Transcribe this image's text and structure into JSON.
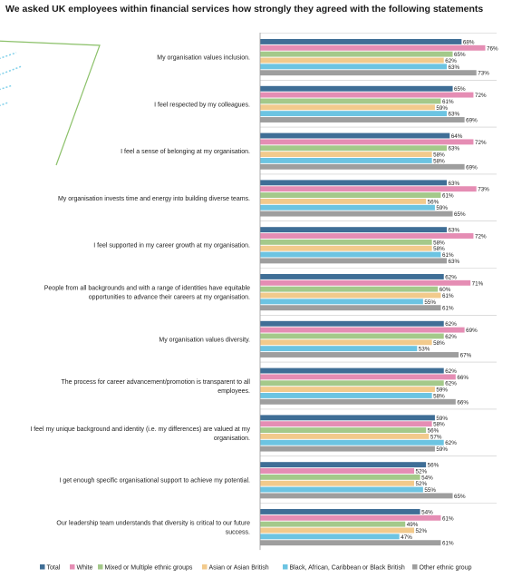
{
  "chart_data": {
    "type": "bar",
    "orientation": "horizontal",
    "title": "We asked UK employees within financial services how strongly they agreed with the following statements",
    "categories": [
      [
        "My organisation values inclusion."
      ],
      [
        "I feel respected by my colleagues."
      ],
      [
        "I feel a sense of belonging at my organisation."
      ],
      [
        "My organisation invests time and energy into building diverse teams."
      ],
      [
        "I feel supported in my career growth at my organisation."
      ],
      [
        "People from all backgrounds and with a range of identities have equitable",
        "opportunities to advance their careers at my organisation."
      ],
      [
        "My organisation values diversity."
      ],
      [
        "The process for career advancement/promotion is transparent to all",
        "employees."
      ],
      [
        "I feel my unique background and identity (i.e. my differences) are valued at my",
        "organisation."
      ],
      [
        "I get enough specific organisational support to achieve my potential."
      ],
      [
        "Our leadership team understands that diversity is critical to our future",
        "success."
      ]
    ],
    "series": [
      {
        "name": "Total",
        "color": "#3f6e96",
        "values": [
          68,
          65,
          64,
          63,
          63,
          62,
          62,
          62,
          59,
          56,
          54
        ]
      },
      {
        "name": "White",
        "color": "#e58db4",
        "values": [
          76,
          72,
          72,
          73,
          72,
          71,
          69,
          66,
          58,
          52,
          61
        ]
      },
      {
        "name": "Mixed or Multiple ethnic groups",
        "color": "#a4c98a",
        "values": [
          65,
          61,
          63,
          61,
          58,
          60,
          62,
          62,
          56,
          54,
          49
        ]
      },
      {
        "name": "Asian or Asian British",
        "color": "#f2ca8c",
        "values": [
          62,
          59,
          58,
          56,
          58,
          61,
          58,
          59,
          57,
          52,
          52
        ]
      },
      {
        "name": "Black, African, Caribbean or Black British",
        "color": "#6cc4e2",
        "values": [
          63,
          63,
          58,
          59,
          61,
          55,
          53,
          58,
          62,
          55,
          47
        ]
      },
      {
        "name": "Other ethnic group",
        "color": "#9e9e9e",
        "values": [
          73,
          69,
          69,
          65,
          63,
          61,
          67,
          66,
          59,
          65,
          61
        ]
      }
    ],
    "value_suffix": "%",
    "xlim": [
      0,
      80
    ],
    "grid": false,
    "legend_position": "bottom",
    "decoration": {
      "line_color": "#8cc16a",
      "dash_color": "#7fd0ea"
    }
  }
}
